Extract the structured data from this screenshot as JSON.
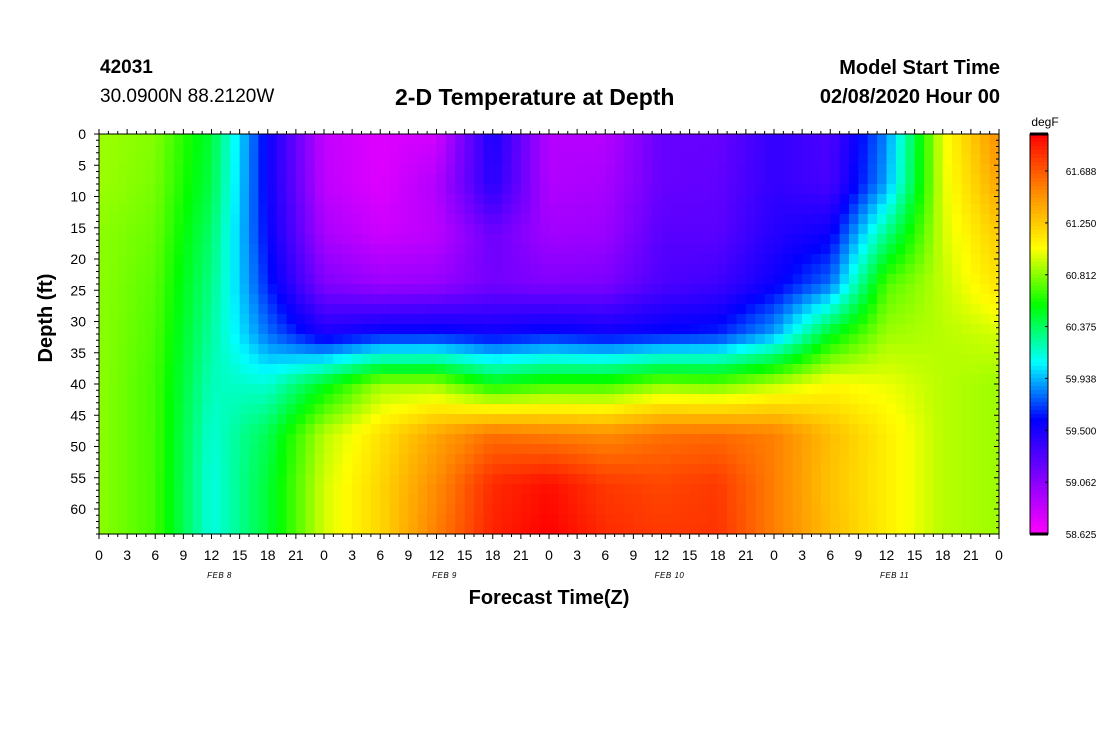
{
  "header": {
    "station": "42031",
    "location": "30.0900N 88.2120W",
    "title": "2-D Temperature at Depth",
    "model_start_label": "Model Start Time",
    "model_start_time": "02/08/2020 Hour 00"
  },
  "chart_data": {
    "type": "heatmap",
    "title": "2-D Temperature at Depth",
    "xlabel": "Forecast Time(Z)",
    "ylabel": "Depth (ft)",
    "x_tick_labels": [
      "0",
      "3",
      "6",
      "9",
      "12",
      "15",
      "18",
      "21",
      "0",
      "3",
      "6",
      "9",
      "12",
      "15",
      "18",
      "21",
      "0",
      "3",
      "6",
      "9",
      "12",
      "15",
      "18",
      "21",
      "0",
      "3",
      "6",
      "9",
      "12",
      "15",
      "18",
      "21",
      "0"
    ],
    "x_range_hours": [
      0,
      96
    ],
    "day_labels": [
      {
        "label": "FEB 8",
        "hour": 12
      },
      {
        "label": "FEB 9",
        "hour": 36
      },
      {
        "label": "FEB 10",
        "hour": 60
      },
      {
        "label": "FEB 11",
        "hour": 84
      }
    ],
    "y_ticks": [
      0,
      5,
      10,
      15,
      20,
      25,
      30,
      35,
      40,
      45,
      50,
      55,
      60
    ],
    "y_range_ft": [
      0,
      64
    ],
    "y_inverted": true,
    "colorbar": {
      "unit": "degF",
      "range": [
        58.625,
        62.0
      ],
      "tick_labels": [
        "61.688",
        "61.250",
        "60.812",
        "60.375",
        "59.938",
        "59.500",
        "59.062",
        "58.625"
      ],
      "tick_values": [
        61.688,
        61.25,
        60.812,
        60.375,
        59.938,
        59.5,
        59.062,
        58.625
      ],
      "colors_low_to_high": [
        "#ff00ff",
        "#7f00ff",
        "#0000ff",
        "#00ffff",
        "#00ff00",
        "#ffff00",
        "#ff8800",
        "#ff0000"
      ]
    },
    "grid_hours": [
      0,
      6,
      12,
      18,
      24,
      30,
      36,
      42,
      48,
      54,
      60,
      66,
      72,
      78,
      84,
      90,
      96
    ],
    "grid_depths_ft": [
      0,
      8,
      16,
      24,
      32,
      40,
      48,
      56,
      64
    ],
    "values_degF": [
      [
        60.85,
        60.8,
        60.45,
        59.55,
        58.85,
        58.75,
        58.8,
        59.5,
        58.9,
        58.9,
        59.2,
        59.2,
        59.4,
        59.3,
        59.85,
        61.0,
        61.5
      ],
      [
        60.85,
        60.78,
        60.42,
        59.55,
        58.87,
        58.75,
        58.92,
        59.45,
        58.92,
        58.95,
        59.2,
        59.22,
        59.4,
        59.32,
        59.9,
        60.98,
        61.4
      ],
      [
        60.82,
        60.75,
        60.35,
        59.58,
        58.95,
        58.82,
        58.88,
        59.18,
        58.98,
        59.0,
        59.25,
        59.25,
        59.45,
        59.55,
        60.3,
        60.95,
        61.25
      ],
      [
        60.82,
        60.72,
        60.3,
        59.65,
        59.1,
        59.0,
        59.02,
        59.15,
        59.1,
        59.12,
        59.3,
        59.35,
        59.55,
        59.8,
        60.7,
        60.92,
        61.15
      ],
      [
        60.82,
        60.7,
        60.25,
        59.8,
        59.5,
        59.6,
        59.62,
        59.55,
        59.62,
        59.55,
        59.6,
        59.65,
        59.9,
        60.5,
        60.85,
        60.9,
        60.95
      ],
      [
        60.82,
        60.68,
        60.2,
        60.15,
        60.5,
        60.85,
        60.85,
        60.55,
        60.65,
        60.65,
        60.8,
        60.75,
        60.9,
        61.05,
        61.0,
        60.9,
        60.85
      ],
      [
        60.82,
        60.68,
        60.15,
        60.4,
        60.9,
        61.15,
        61.4,
        61.6,
        61.55,
        61.5,
        61.6,
        61.62,
        61.55,
        61.3,
        61.1,
        60.9,
        60.85
      ],
      [
        60.82,
        60.68,
        60.12,
        60.45,
        60.95,
        61.2,
        61.5,
        61.85,
        61.95,
        61.8,
        61.75,
        61.8,
        61.55,
        61.28,
        61.1,
        60.9,
        60.85
      ],
      [
        60.82,
        60.68,
        60.12,
        60.45,
        60.95,
        61.2,
        61.55,
        61.88,
        62.0,
        61.85,
        61.8,
        61.82,
        61.55,
        61.3,
        61.1,
        60.9,
        60.85
      ]
    ]
  }
}
